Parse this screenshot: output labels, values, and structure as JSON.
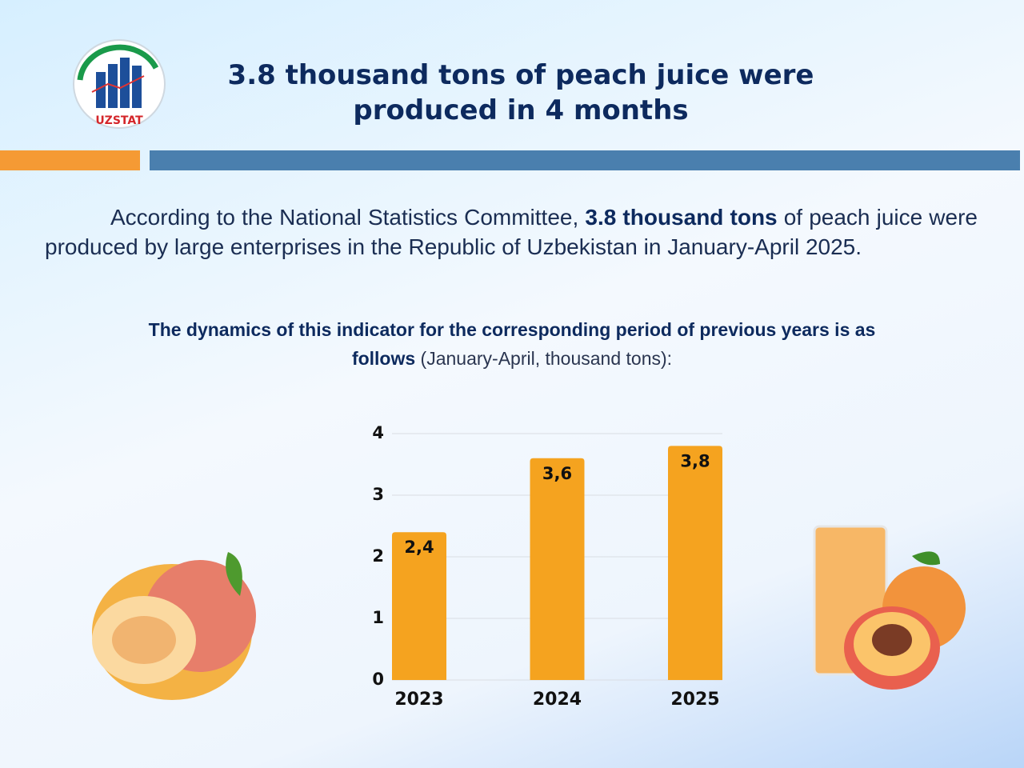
{
  "header": {
    "title": "3.8 thousand tons of peach juice were produced in 4 months",
    "logo_text": "UZSTAT"
  },
  "paragraph": {
    "parts": [
      "According to the National Statistics Committee, ",
      "3.8 thousand tons",
      " of peach juice were produced by large enterprises in the Republic of Uzbekistan in January-April 2025."
    ]
  },
  "chart_data": {
    "type": "bar",
    "title": {
      "bold": "The dynamics of this indicator for the corresponding period of previous years is as follows",
      "normal": " (January-April, thousand tons):"
    },
    "categories": [
      "2023",
      "2024",
      "2025"
    ],
    "values": [
      2.4,
      3.6,
      3.8
    ],
    "value_labels": [
      "2,4",
      "3,6",
      "3,8"
    ],
    "color": "#f5a31f",
    "ylim": [
      0,
      4
    ],
    "yticks": [
      0,
      1,
      2,
      3,
      4
    ],
    "grid": true
  }
}
